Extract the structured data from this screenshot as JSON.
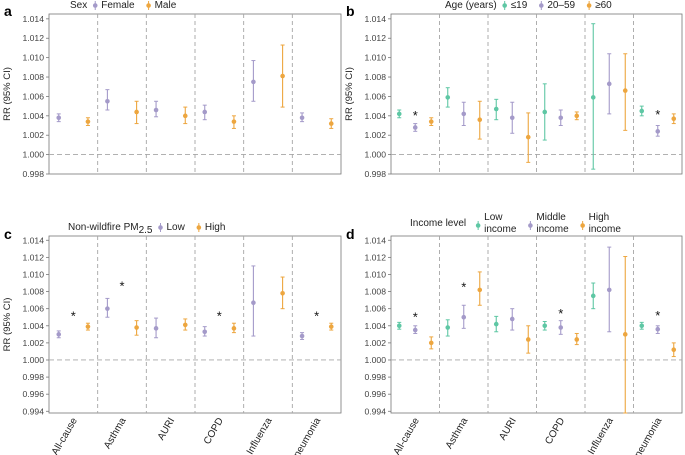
{
  "figure": {
    "colors": {
      "teal": "#5ec7a4",
      "purple": "#a49ac9",
      "orange": "#eda63f",
      "divider": "#a6a6a6",
      "refline": "#a6a6a6",
      "frame": "#777777"
    },
    "categories": [
      "All-cause",
      "Asthma",
      "AURI",
      "COPD",
      "Influenza",
      "Pneumonia"
    ],
    "y_axis_title": "RR (95% CI)"
  },
  "chart_data": [
    {
      "panel": "a",
      "type": "errorbar",
      "legend_title": "Sex",
      "legend_title_sub": "",
      "legend_layout": "inline",
      "categories": [
        "All-cause",
        "Asthma",
        "AURI",
        "COPD",
        "Influenza",
        "Pneumonia"
      ],
      "ylim": [
        0.998,
        1.0145
      ],
      "ticks": [
        "0.998",
        "1.000",
        "1.002",
        "1.004",
        "1.006",
        "1.008",
        "1.010",
        "1.012",
        "1.014"
      ],
      "reference": 1.0,
      "show_category_labels": false,
      "ylabel": "RR (95% CI)",
      "series": [
        {
          "name": "Female",
          "legend_label": [
            "Female"
          ],
          "color": "#a49ac9",
          "est": [
            1.0038,
            1.0055,
            1.0046,
            1.0044,
            1.0075,
            1.0038
          ],
          "lo": [
            1.0034,
            1.0046,
            1.0039,
            1.0036,
            1.0055,
            1.0034
          ],
          "hi": [
            1.0042,
            1.0067,
            1.0055,
            1.0051,
            1.0097,
            1.0043
          ]
        },
        {
          "name": "Male",
          "legend_label": [
            "Male"
          ],
          "color": "#eda63f",
          "est": [
            1.0034,
            1.0044,
            1.004,
            1.0034,
            1.0081,
            1.0032
          ],
          "lo": [
            1.003,
            1.0032,
            1.0032,
            1.0027,
            1.0049,
            1.0027
          ],
          "hi": [
            1.0038,
            1.0055,
            1.0049,
            1.004,
            1.0113,
            1.0037
          ]
        }
      ],
      "stars": []
    },
    {
      "panel": "b",
      "type": "errorbar",
      "legend_title": "Age (years)",
      "legend_title_sub": "",
      "legend_layout": "inline",
      "categories": [
        "All-cause",
        "Asthma",
        "AURI",
        "COPD",
        "Influenza",
        "Pneumonia"
      ],
      "ylim": [
        0.998,
        1.0145
      ],
      "ticks": [
        "0.998",
        "1.000",
        "1.002",
        "1.004",
        "1.006",
        "1.008",
        "1.010",
        "1.012",
        "1.014"
      ],
      "reference": 1.0,
      "show_category_labels": false,
      "ylabel": "RR (95% CI)",
      "series": [
        {
          "name": "≤19",
          "legend_label": [
            "≤19"
          ],
          "color": "#5ec7a4",
          "est": [
            1.0042,
            1.0059,
            1.0047,
            1.0044,
            1.0059,
            1.0045
          ],
          "lo": [
            1.0038,
            1.0049,
            1.0036,
            1.0015,
            0.9985,
            1.004
          ],
          "hi": [
            1.0046,
            1.0069,
            1.0057,
            1.0073,
            1.0135,
            1.005
          ]
        },
        {
          "name": "20–59",
          "legend_label": [
            "20–59"
          ],
          "color": "#a49ac9",
          "est": [
            1.0028,
            1.0042,
            1.0038,
            1.0038,
            1.0073,
            1.0024
          ],
          "lo": [
            1.0024,
            1.003,
            1.0022,
            1.003,
            1.0042,
            1.0019
          ],
          "hi": [
            1.0032,
            1.0054,
            1.0054,
            1.0046,
            1.0104,
            1.003
          ]
        },
        {
          "name": "≥60",
          "legend_label": [
            "≥60"
          ],
          "color": "#eda63f",
          "est": [
            1.0034,
            1.0036,
            1.0018,
            1.004,
            1.0066,
            1.0037
          ],
          "lo": [
            1.003,
            1.0016,
            0.9992,
            1.0036,
            1.0025,
            1.0032
          ],
          "hi": [
            1.0038,
            1.0055,
            1.0043,
            1.0044,
            1.0104,
            1.0042
          ]
        }
      ],
      "stars": [
        {
          "category": "All-cause",
          "y": 1.0042
        },
        {
          "category": "Pneumonia",
          "y": 1.0043
        }
      ]
    },
    {
      "panel": "c",
      "type": "errorbar",
      "legend_title": "Non-wildfire PM",
      "legend_title_sub": "2.5",
      "legend_layout": "inline",
      "categories": [
        "All-cause",
        "Asthma",
        "AURI",
        "COPD",
        "Influenza",
        "Pneumonia"
      ],
      "ylim": [
        0.9938,
        1.0145
      ],
      "ticks": [
        "0.994",
        "0.996",
        "0.998",
        "1.000",
        "1.002",
        "1.004",
        "1.006",
        "1.008",
        "1.010",
        "1.012",
        "1.014"
      ],
      "reference": 1.0,
      "show_category_labels": true,
      "ylabel": "RR (95% CI)",
      "series": [
        {
          "name": "Low",
          "legend_label": [
            "Low"
          ],
          "color": "#a49ac9",
          "est": [
            1.003,
            1.006,
            1.0037,
            1.0033,
            1.0067,
            1.0028
          ],
          "lo": [
            1.0026,
            1.005,
            1.0026,
            1.0028,
            1.0028,
            1.0024
          ],
          "hi": [
            1.0034,
            1.0072,
            1.0049,
            1.0039,
            1.011,
            1.0032
          ]
        },
        {
          "name": "High",
          "legend_label": [
            "High"
          ],
          "color": "#eda63f",
          "est": [
            1.0039,
            1.0038,
            1.0041,
            1.0037,
            1.0078,
            1.0039
          ],
          "lo": [
            1.0035,
            1.0029,
            1.0035,
            1.0032,
            1.006,
            1.0035
          ],
          "hi": [
            1.0043,
            1.0046,
            1.0048,
            1.0043,
            1.0097,
            1.0043
          ]
        }
      ],
      "stars": [
        {
          "category": "All-cause",
          "y": 1.0053
        },
        {
          "category": "Asthma",
          "y": 1.0088
        },
        {
          "category": "COPD",
          "y": 1.0053
        },
        {
          "category": "Pneumonia",
          "y": 1.0053
        }
      ]
    },
    {
      "panel": "d",
      "type": "errorbar",
      "legend_title": "Income level",
      "legend_title_sub": "",
      "legend_layout": "stacked",
      "categories": [
        "All-cause",
        "Asthma",
        "AURI",
        "COPD",
        "Influenza",
        "Pneumonia"
      ],
      "ylim": [
        0.9938,
        1.0145
      ],
      "ticks": [
        "0.994",
        "0.996",
        "0.998",
        "1.000",
        "1.002",
        "1.004",
        "1.006",
        "1.008",
        "1.010",
        "1.012",
        "1.014"
      ],
      "reference": 1.0,
      "show_category_labels": true,
      "ylabel": "",
      "series": [
        {
          "name": "Low income",
          "legend_label": [
            "Low",
            "income"
          ],
          "color": "#5ec7a4",
          "est": [
            1.004,
            1.0038,
            1.0042,
            1.004,
            1.0075,
            1.004
          ],
          "lo": [
            1.0036,
            1.0028,
            1.0033,
            1.0035,
            1.006,
            1.0036
          ],
          "hi": [
            1.0044,
            1.0047,
            1.0051,
            1.0045,
            1.009,
            1.0044
          ]
        },
        {
          "name": "Middle income",
          "legend_label": [
            "Middle",
            "income"
          ],
          "color": "#a49ac9",
          "est": [
            1.0035,
            1.005,
            1.0048,
            1.0038,
            1.0082,
            1.0036
          ],
          "lo": [
            1.0031,
            1.0037,
            1.0035,
            1.003,
            1.0033,
            1.0031
          ],
          "hi": [
            1.004,
            1.0064,
            1.006,
            1.0046,
            1.0132,
            1.004
          ]
        },
        {
          "name": "High income",
          "legend_label": [
            "High",
            "income"
          ],
          "color": "#eda63f",
          "est": [
            1.002,
            1.0082,
            1.0024,
            1.0024,
            1.003,
            1.0012
          ],
          "lo": [
            1.0013,
            1.0064,
            1.0008,
            1.0018,
            0.9938,
            1.0004
          ],
          "hi": [
            1.0027,
            1.0103,
            1.004,
            1.0031,
            1.0121,
            1.002
          ]
        }
      ],
      "stars": [
        {
          "category": "All-cause",
          "y": 1.0052
        },
        {
          "category": "Asthma",
          "y": 1.0087
        },
        {
          "category": "COPD",
          "y": 1.0056
        },
        {
          "category": "Pneumonia",
          "y": 1.0054
        }
      ]
    }
  ]
}
